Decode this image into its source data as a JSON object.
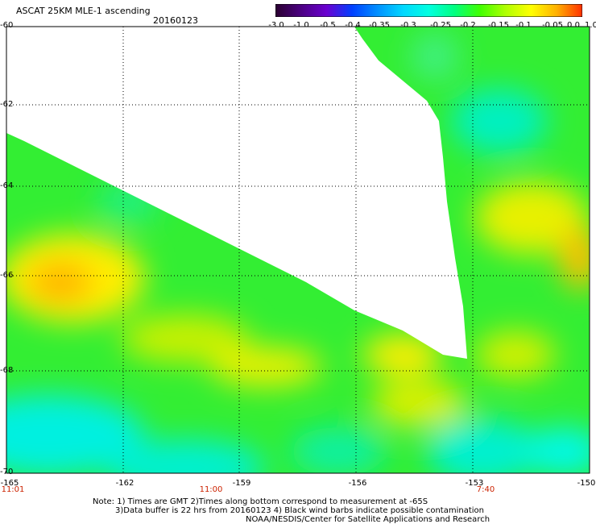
{
  "header": {
    "title": "ASCAT 25KM MLE-1 ascending",
    "date": "20160123"
  },
  "colorbar": {
    "tick_labels": [
      "-3.0",
      "-1.0",
      "-0.5",
      "-0.4",
      "-0.35",
      "-0.3",
      "-0.25",
      "-0.2",
      "-0.15",
      "-0.1",
      "-0.05",
      "0.0",
      "1.0"
    ],
    "colors": [
      "#2a0030",
      "#4b0082",
      "#6a00d0",
      "#0040ff",
      "#0090ff",
      "#00d8ff",
      "#00ffe0",
      "#00ff80",
      "#40ff00",
      "#b0ff00",
      "#ffff00",
      "#ffb000",
      "#ff3000"
    ]
  },
  "axes": {
    "lat_labels": [
      "-60",
      "-62",
      "-64",
      "-66",
      "-68",
      "-70"
    ],
    "lon_labels": [
      "-165",
      "-162",
      "-159",
      "-156",
      "-153",
      "-150"
    ],
    "time_labels": [
      "11:01",
      "11:00",
      "7:40"
    ]
  },
  "notes": {
    "line1": "Note: 1) Times are GMT 2)Times along bottom correspond to measurement at -65S",
    "line2": "3)Data buffer is 22 hrs from 20160123 4) Black wind barbs indicate possible contamination",
    "line3": "NOAA/NESDIS/Center for Satellite Applications and Research"
  }
}
